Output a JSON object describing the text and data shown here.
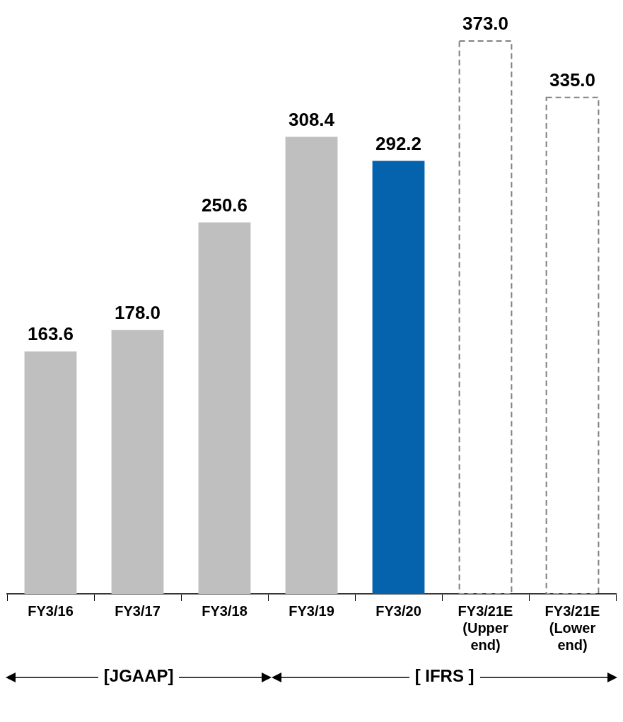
{
  "chart_data": {
    "type": "bar",
    "categories": [
      "FY3/16",
      "FY3/17",
      "FY3/18",
      "FY3/19",
      "FY3/20",
      "FY3/21E (Upper end)",
      "FY3/21E (Lower end)"
    ],
    "series": [
      {
        "colors": [
          "#bfbfbf",
          "#bfbfbf",
          "#bfbfbf",
          "#bfbfbf",
          "#0563ae",
          null,
          null
        ],
        "values": [
          163.6,
          178.0,
          250.6,
          308.4,
          292.2,
          null,
          null
        ],
        "value_labels": [
          "163.6",
          "178.0",
          "250.6",
          "308.4",
          "292.2",
          null,
          null
        ]
      },
      {
        "color": "#808080",
        "line_style": "dashed",
        "values": [
          null,
          null,
          null,
          null,
          null,
          373.0,
          335.0
        ],
        "value_labels": [
          null,
          null,
          null,
          null,
          null,
          "373.0",
          "335.0"
        ]
      }
    ],
    "grid": false,
    "legend": false,
    "annotations": [
      "[JGAAP]",
      "[ IFRS ]"
    ]
  }
}
